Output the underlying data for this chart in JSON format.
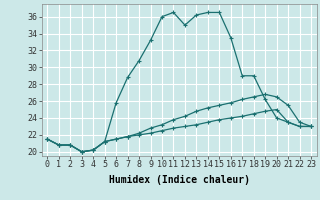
{
  "title": "",
  "xlabel": "Humidex (Indice chaleur)",
  "ylabel": "",
  "background_color": "#cce8e8",
  "line_color": "#1a7070",
  "grid_color": "#ffffff",
  "ylim": [
    19.5,
    37.5
  ],
  "xlim": [
    -0.5,
    23.5
  ],
  "yticks": [
    20,
    22,
    24,
    26,
    28,
    30,
    32,
    34,
    36
  ],
  "xticks": [
    0,
    1,
    2,
    3,
    4,
    5,
    6,
    7,
    8,
    9,
    10,
    11,
    12,
    13,
    14,
    15,
    16,
    17,
    18,
    19,
    20,
    21,
    22,
    23
  ],
  "series1_x": [
    0,
    1,
    2,
    3,
    4,
    5,
    6,
    7,
    8,
    9,
    10,
    11,
    12,
    13,
    14,
    15,
    16,
    17,
    18,
    19,
    20,
    21,
    22,
    23
  ],
  "series1_y": [
    21.5,
    20.8,
    20.8,
    20.0,
    20.2,
    21.2,
    25.8,
    28.8,
    30.8,
    33.2,
    36.0,
    36.5,
    35.0,
    36.2,
    36.5,
    36.5,
    33.5,
    29.0,
    29.0,
    26.2,
    24.0,
    23.5,
    23.0,
    23.0
  ],
  "series2_x": [
    0,
    1,
    2,
    3,
    4,
    5,
    6,
    7,
    8,
    9,
    10,
    11,
    12,
    13,
    14,
    15,
    16,
    17,
    18,
    19,
    20,
    21,
    22,
    23
  ],
  "series2_y": [
    21.5,
    20.8,
    20.8,
    20.0,
    20.2,
    21.2,
    21.5,
    21.8,
    22.2,
    22.8,
    23.2,
    23.8,
    24.2,
    24.8,
    25.2,
    25.5,
    25.8,
    26.2,
    26.5,
    26.8,
    26.5,
    25.5,
    23.5,
    23.0
  ],
  "series3_x": [
    0,
    1,
    2,
    3,
    4,
    5,
    6,
    7,
    8,
    9,
    10,
    11,
    12,
    13,
    14,
    15,
    16,
    17,
    18,
    19,
    20,
    21,
    22,
    23
  ],
  "series3_y": [
    21.5,
    20.8,
    20.8,
    20.0,
    20.2,
    21.2,
    21.5,
    21.8,
    22.0,
    22.2,
    22.5,
    22.8,
    23.0,
    23.2,
    23.5,
    23.8,
    24.0,
    24.2,
    24.5,
    24.8,
    25.0,
    23.5,
    23.0,
    23.0
  ],
  "tick_fontsize": 6,
  "xlabel_fontsize": 7
}
